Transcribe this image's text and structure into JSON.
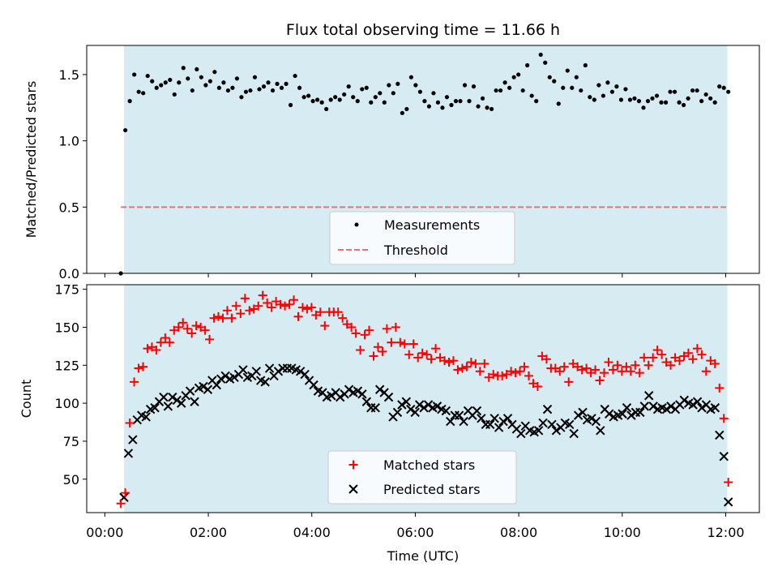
{
  "chart_data": [
    {
      "type": "scatter",
      "panel": "top",
      "title": "Flux total observing time = 11.66 h",
      "ylabel": "Matched/Predicted stars",
      "xlabel": "",
      "xlim_hours": [
        -0.35,
        12.65
      ],
      "ylim": [
        0,
        1.72
      ],
      "yticks": [
        0,
        0.5,
        1.0,
        1.5
      ],
      "ytick_labels": [
        "0.0",
        "0.5",
        "1.0",
        "1.5"
      ],
      "shaded_span_hours": [
        0.37,
        12.03
      ],
      "shade_color": "#add8e6",
      "legend_location": "lower center",
      "threshold": {
        "label": "Threshold",
        "value": 0.5,
        "color": "#f07070",
        "style": "dashed",
        "x_start_hours": 0.31
      },
      "series": [
        {
          "name": "Measurements",
          "color": "#000000",
          "marker": "dot",
          "values": [
            0.0,
            1.08,
            1.3,
            1.5,
            1.37,
            1.36,
            1.49,
            1.45,
            1.4,
            1.42,
            1.44,
            1.46,
            1.35,
            1.44,
            1.55,
            1.47,
            1.38,
            1.54,
            1.48,
            1.42,
            1.45,
            1.52,
            1.4,
            1.44,
            1.38,
            1.4,
            1.47,
            1.33,
            1.37,
            1.38,
            1.48,
            1.39,
            1.41,
            1.44,
            1.38,
            1.43,
            1.4,
            1.43,
            1.27,
            1.49,
            1.4,
            1.33,
            1.34,
            1.3,
            1.31,
            1.29,
            1.24,
            1.31,
            1.33,
            1.31,
            1.35,
            1.41,
            1.33,
            1.3,
            1.39,
            1.4,
            1.29,
            1.33,
            1.36,
            1.29,
            1.42,
            1.36,
            1.43,
            1.21,
            1.24,
            1.48,
            1.42,
            1.37,
            1.3,
            1.26,
            1.36,
            1.29,
            1.25,
            1.33,
            1.27,
            1.3,
            1.3,
            1.42,
            1.3,
            1.41,
            1.26,
            1.32,
            1.25,
            1.24,
            1.38,
            1.38,
            1.44,
            1.4,
            1.48,
            1.5,
            1.38,
            1.57,
            1.34,
            1.3,
            1.65,
            1.59,
            1.48,
            1.45,
            1.28,
            1.4,
            1.53,
            1.4,
            1.48,
            1.38,
            1.57,
            1.33,
            1.31,
            1.42,
            1.34,
            1.44,
            1.37,
            1.41,
            1.31,
            1.39,
            1.31,
            1.32,
            1.3,
            1.25,
            1.3,
            1.32,
            1.34,
            1.29,
            1.29,
            1.37,
            1.37,
            1.29,
            1.27,
            1.32,
            1.38,
            1.38,
            1.3,
            1.35,
            1.32,
            1.29,
            1.41,
            1.4,
            1.37
          ]
        }
      ]
    },
    {
      "type": "scatter",
      "panel": "bottom",
      "xlabel": "Time (UTC)",
      "ylabel": "Count",
      "xlim_hours": [
        -0.35,
        12.65
      ],
      "ylim": [
        28,
        178
      ],
      "yticks": [
        50,
        75,
        100,
        125,
        150,
        175
      ],
      "ytick_labels": [
        "50",
        "75",
        "100",
        "125",
        "150",
        "175"
      ],
      "xticks_hours": [
        0,
        2,
        4,
        6,
        8,
        10,
        12
      ],
      "xtick_labels": [
        "00:00",
        "02:00",
        "04:00",
        "06:00",
        "08:00",
        "10:00",
        "12:00"
      ],
      "shaded_span_hours": [
        0.37,
        12.03
      ],
      "shade_color": "#add8e6",
      "legend_location": "lower center",
      "series": [
        {
          "name": "Matched stars",
          "color": "#ff0000",
          "marker": "plus",
          "values": [
            34,
            41,
            87,
            114,
            123,
            124,
            136,
            137,
            135,
            140,
            143,
            140,
            148,
            150,
            153,
            149,
            146,
            151,
            150,
            148,
            142,
            156,
            157,
            156,
            161,
            156,
            164,
            159,
            169,
            161,
            162,
            164,
            171,
            166,
            163,
            167,
            165,
            164,
            165,
            168,
            157,
            163,
            162,
            163,
            158,
            160,
            151,
            160,
            160,
            160,
            156,
            152,
            150,
            146,
            135,
            145,
            148,
            131,
            137,
            134,
            149,
            140,
            150,
            140,
            139,
            132,
            139,
            130,
            133,
            132,
            129,
            136,
            130,
            128,
            127,
            128,
            122,
            123,
            124,
            127,
            126,
            121,
            126,
            117,
            119,
            118,
            118,
            119,
            121,
            120,
            121,
            124,
            118,
            113,
            111,
            131,
            129,
            123,
            123,
            121,
            124,
            114,
            126,
            124,
            122,
            123,
            120,
            122,
            115,
            120,
            127,
            122,
            125,
            121,
            124,
            121,
            125,
            120,
            130,
            125,
            130,
            135,
            132,
            127,
            125,
            130,
            128,
            131,
            133,
            129,
            136,
            132,
            121,
            128,
            126,
            110,
            90,
            48
          ]
        },
        {
          "name": "Predicted stars",
          "color": "#000000",
          "marker": "x",
          "values": [
            38,
            67,
            76,
            89,
            92,
            91,
            96,
            97,
            101,
            104,
            98,
            104,
            102,
            100,
            105,
            108,
            101,
            110,
            111,
            109,
            115,
            112,
            116,
            118,
            116,
            117,
            119,
            122,
            117,
            118,
            121,
            115,
            114,
            123,
            118,
            121,
            123,
            123,
            123,
            122,
            121,
            119,
            115,
            112,
            108,
            107,
            104,
            105,
            107,
            104,
            106,
            109,
            107,
            108,
            106,
            101,
            97,
            97,
            109,
            107,
            104,
            91,
            94,
            99,
            101,
            96,
            94,
            99,
            97,
            99,
            97,
            98,
            96,
            95,
            88,
            92,
            92,
            88,
            95,
            92,
            95,
            90,
            86,
            86,
            90,
            84,
            88,
            90,
            86,
            83,
            80,
            85,
            82,
            81,
            82,
            87,
            96,
            86,
            82,
            84,
            87,
            86,
            80,
            92,
            94,
            89,
            90,
            88,
            82,
            96,
            93,
            91,
            92,
            93,
            97,
            92,
            94,
            94,
            98,
            105,
            98,
            96,
            97,
            96,
            98,
            96,
            99,
            102,
            100,
            99,
            101,
            97,
            99,
            96,
            97,
            79,
            65,
            35
          ]
        }
      ]
    }
  ]
}
